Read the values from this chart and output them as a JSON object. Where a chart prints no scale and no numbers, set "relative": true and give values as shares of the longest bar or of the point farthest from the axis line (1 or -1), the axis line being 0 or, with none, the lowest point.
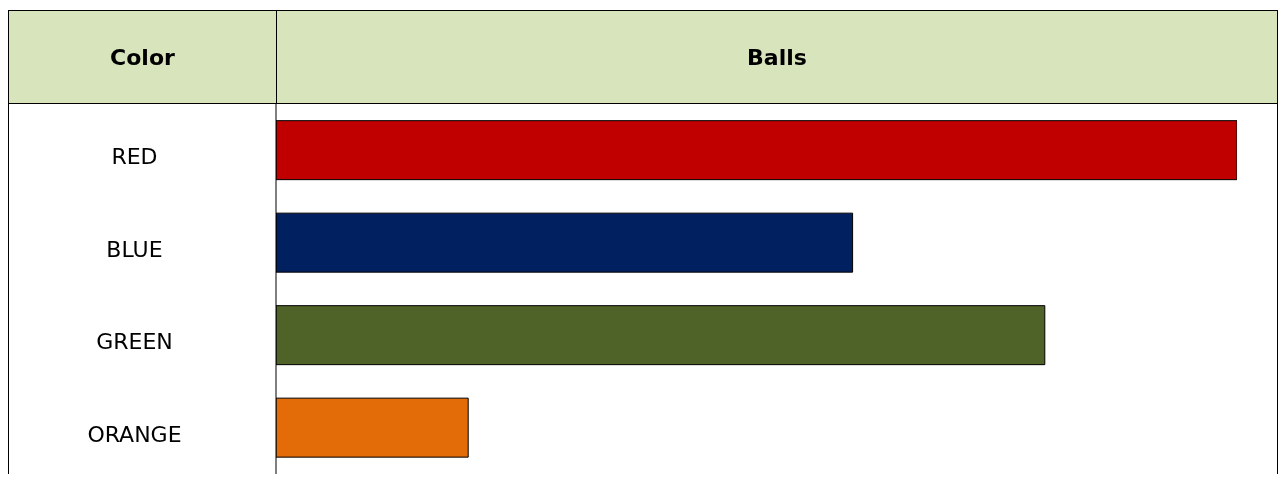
{
  "chart_data": {
    "type": "bar",
    "orientation": "horizontal",
    "relative": true,
    "ylabel": "Color",
    "xlabel": "Balls",
    "categories": [
      "RED",
      "BLUE",
      "GREEN",
      "ORANGE"
    ],
    "values": [
      1,
      0.6,
      0.8,
      0.2
    ],
    "colors": [
      "#c00000",
      "#002060",
      "#4f6228",
      "#e36c09"
    ]
  }
}
